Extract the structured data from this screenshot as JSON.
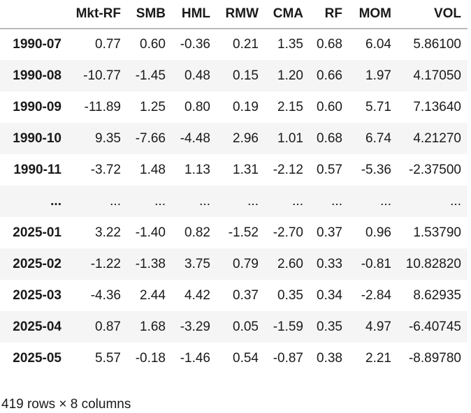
{
  "table": {
    "index_header": "",
    "columns": [
      "Mkt-RF",
      "SMB",
      "HML",
      "RMW",
      "CMA",
      "RF",
      "MOM",
      "VOL"
    ],
    "rows": [
      {
        "index": "1990-07",
        "values": [
          "0.77",
          "0.60",
          "-0.36",
          "0.21",
          "1.35",
          "0.68",
          "6.04",
          "5.86100"
        ]
      },
      {
        "index": "1990-08",
        "values": [
          "-10.77",
          "-1.45",
          "0.48",
          "0.15",
          "1.20",
          "0.66",
          "1.97",
          "4.17050"
        ]
      },
      {
        "index": "1990-09",
        "values": [
          "-11.89",
          "1.25",
          "0.80",
          "0.19",
          "2.15",
          "0.60",
          "5.71",
          "7.13640"
        ]
      },
      {
        "index": "1990-10",
        "values": [
          "9.35",
          "-7.66",
          "-4.48",
          "2.96",
          "1.01",
          "0.68",
          "6.74",
          "4.21270"
        ]
      },
      {
        "index": "1990-11",
        "values": [
          "-3.72",
          "1.48",
          "1.13",
          "1.31",
          "-2.12",
          "0.57",
          "-5.36",
          "-2.37500"
        ]
      },
      {
        "index": "...",
        "values": [
          "...",
          "...",
          "...",
          "...",
          "...",
          "...",
          "...",
          "..."
        ]
      },
      {
        "index": "2025-01",
        "values": [
          "3.22",
          "-1.40",
          "0.82",
          "-1.52",
          "-2.70",
          "0.37",
          "0.96",
          "1.53790"
        ]
      },
      {
        "index": "2025-02",
        "values": [
          "-1.22",
          "-1.38",
          "3.75",
          "0.79",
          "2.60",
          "0.33",
          "-0.81",
          "10.82820"
        ]
      },
      {
        "index": "2025-03",
        "values": [
          "-4.36",
          "2.44",
          "4.42",
          "0.37",
          "0.35",
          "0.34",
          "-2.84",
          "8.62935"
        ]
      },
      {
        "index": "2025-04",
        "values": [
          "0.87",
          "1.68",
          "-3.29",
          "0.05",
          "-1.59",
          "0.35",
          "4.97",
          "-6.40745"
        ]
      },
      {
        "index": "2025-05",
        "values": [
          "5.57",
          "-0.18",
          "-1.46",
          "0.54",
          "-0.87",
          "0.38",
          "2.21",
          "-8.89780"
        ]
      }
    ]
  },
  "footer": {
    "summary": "419 rows × 8 columns"
  },
  "colors": {
    "stripe": "#f5f5f5",
    "header_border": "#b9b9b9",
    "text": "#1a1a1a",
    "background": "#ffffff"
  }
}
